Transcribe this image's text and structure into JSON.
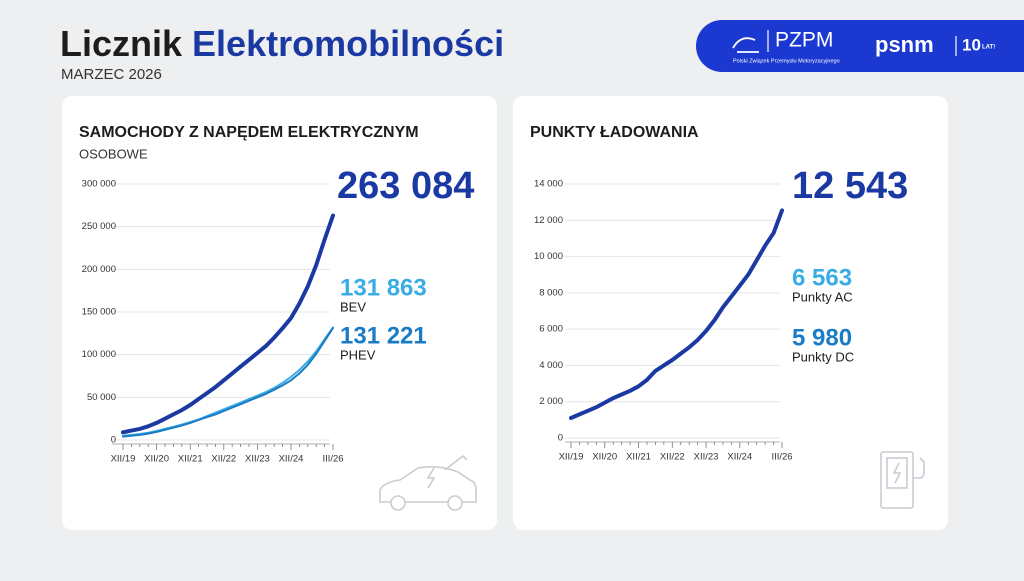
{
  "header": {
    "title_black": "Licznik",
    "title_blue": "Elektromobilności",
    "date": "MARZEC 2026",
    "logo_pzpm": "PZPM",
    "logo_pzpm_sub": "Polski Związek Przemysłu Motoryzacyjnego",
    "logo_psnm": "psnm",
    "logo_years": "10",
    "logo_years_sub": "LAT!"
  },
  "chart_data": [
    {
      "type": "line",
      "title": "SAMOCHODY Z NAPĘDEM ELEKTRYCZNYM",
      "subtitle": "OSOBOWE",
      "categories": [
        "XII/19",
        null,
        null,
        null,
        "XII/20",
        null,
        null,
        null,
        "XII/21",
        null,
        null,
        null,
        "XII/22",
        null,
        null,
        null,
        "XII/23",
        null,
        null,
        null,
        "XII/24",
        null,
        null,
        null,
        null,
        "III/26"
      ],
      "series": [
        {
          "color": "#1b39a3",
          "values": [
            9000,
            11000,
            13000,
            16000,
            20000,
            25000,
            30000,
            35000,
            41000,
            48000,
            55000,
            62000,
            70000,
            78000,
            86000,
            94000,
            102000,
            110000,
            120000,
            131000,
            143000,
            160000,
            180000,
            205000,
            235000,
            263084
          ],
          "value_labels": [
            null,
            null,
            null,
            null,
            null,
            null,
            null,
            null,
            null,
            null,
            null,
            null,
            null,
            null,
            null,
            null,
            null,
            null,
            null,
            null,
            null,
            null,
            null,
            null,
            null,
            "263 084"
          ]
        },
        {
          "name": "BEV",
          "color": "#39ade3",
          "values": [
            5000,
            6000,
            7000,
            8500,
            10500,
            13000,
            15500,
            18000,
            21000,
            24000,
            28000,
            32000,
            36000,
            40000,
            44000,
            48000,
            52000,
            56000,
            61000,
            67000,
            74000,
            82000,
            92000,
            104000,
            118000,
            131863
          ],
          "value_labels": [
            null,
            null,
            null,
            null,
            null,
            null,
            null,
            null,
            null,
            null,
            null,
            null,
            null,
            null,
            null,
            null,
            null,
            null,
            null,
            null,
            null,
            null,
            null,
            null,
            null,
            "131 863"
          ]
        },
        {
          "name": "PHEV",
          "color": "#1b7cc6",
          "values": [
            4000,
            5000,
            6000,
            7500,
            9500,
            12000,
            14500,
            17000,
            20000,
            23500,
            27000,
            30000,
            34000,
            38000,
            42000,
            46000,
            50000,
            54000,
            59000,
            64000,
            70000,
            78000,
            88000,
            101000,
            116000,
            131221
          ],
          "value_labels": [
            null,
            null,
            null,
            null,
            null,
            null,
            null,
            null,
            null,
            null,
            null,
            null,
            null,
            null,
            null,
            null,
            null,
            null,
            null,
            null,
            null,
            null,
            null,
            null,
            null,
            "131 221"
          ]
        }
      ],
      "ylim": [
        0,
        300000
      ],
      "yticks": [
        0,
        {
          "value": 50000,
          "label": "50 000"
        },
        {
          "value": 100000,
          "label": "100 000"
        },
        {
          "value": 150000,
          "label": "150 000"
        },
        {
          "value": 200000,
          "label": "200 000"
        },
        {
          "value": 250000,
          "label": "250 000"
        },
        {
          "value": 300000,
          "label": "300 000"
        }
      ],
      "grid": true
    },
    {
      "type": "line",
      "title": "PUNKTY ŁADOWANIA",
      "categories": [
        "XII/19",
        null,
        null,
        null,
        "XII/20",
        null,
        null,
        null,
        "XII/21",
        null,
        null,
        null,
        "XII/22",
        null,
        null,
        null,
        "XII/23",
        null,
        null,
        null,
        "XII/24",
        null,
        null,
        null,
        null,
        "III/26"
      ],
      "series": [
        {
          "color": "#1b39a3",
          "values": [
            1100,
            1300,
            1500,
            1700,
            1950,
            2200,
            2400,
            2600,
            2850,
            3200,
            3700,
            4000,
            4300,
            4650,
            5000,
            5400,
            5900,
            6500,
            7200,
            7800,
            8400,
            9000,
            9800,
            10600,
            11300,
            12543
          ],
          "value_labels": [
            null,
            null,
            null,
            null,
            null,
            null,
            null,
            null,
            null,
            null,
            null,
            null,
            null,
            null,
            null,
            null,
            null,
            null,
            null,
            null,
            null,
            null,
            null,
            null,
            null,
            "12 543"
          ]
        }
      ],
      "annotations": [
        {
          "text": "6 563",
          "caption": "Punkty AC",
          "color": "#39ade3"
        },
        {
          "text": "5 980",
          "caption": "Punkty DC",
          "color": "#1b7cc6"
        }
      ],
      "ylim": [
        0,
        14000
      ],
      "yticks": [
        0,
        {
          "value": 2000,
          "label": "2 000"
        },
        {
          "value": 4000,
          "label": "4 000"
        },
        {
          "value": 6000,
          "label": "6 000"
        },
        {
          "value": 8000,
          "label": "8 000"
        },
        {
          "value": 10000,
          "label": "10 000"
        },
        {
          "value": 12000,
          "label": "12 000"
        },
        {
          "value": 14000,
          "label": "14 000"
        }
      ],
      "grid": true
    }
  ]
}
